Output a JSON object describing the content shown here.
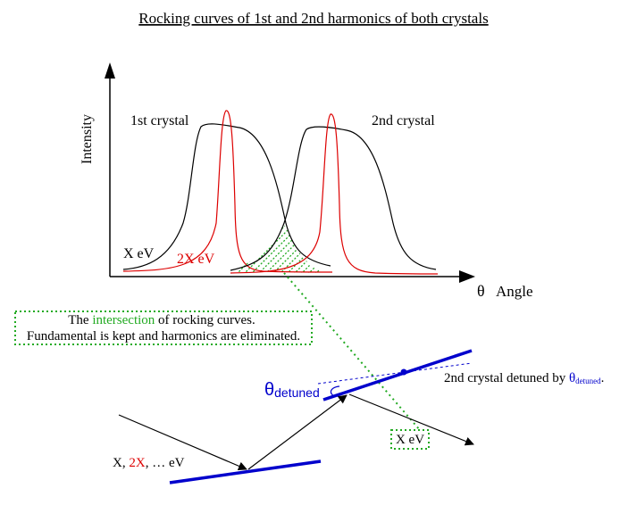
{
  "title": "Rocking curves of 1st and 2nd harmonics of both crystals",
  "axes": {
    "y_label": "Intensity",
    "x_symbol": "θ",
    "x_label": "Angle"
  },
  "curves": {
    "crystal1_label": "1st crystal",
    "crystal2_label": "2nd crystal",
    "fundamental_label": "X eV",
    "harmonic_label": "2X eV"
  },
  "note": {
    "part1": "The ",
    "highlight": "intersection",
    "part2": " of rocking curves.",
    "line2": "Fundamental is kept and harmonics are eliminated."
  },
  "geometry_labels": {
    "theta_symbol": "θ",
    "theta_sub": "detuned",
    "detune_text": "2nd crystal detuned by ",
    "detune_symbol": "θ",
    "detune_sub": "detuned",
    "detune_period": ".",
    "incident_x": "X, ",
    "incident_2x": "2X",
    "incident_rest": ", … eV",
    "output_label": "X eV"
  },
  "colors": {
    "fundamental": "#000000",
    "harmonic": "#dd0000",
    "intersection": "#22aa22",
    "crystal": "#0000cc",
    "text": "#000000"
  }
}
